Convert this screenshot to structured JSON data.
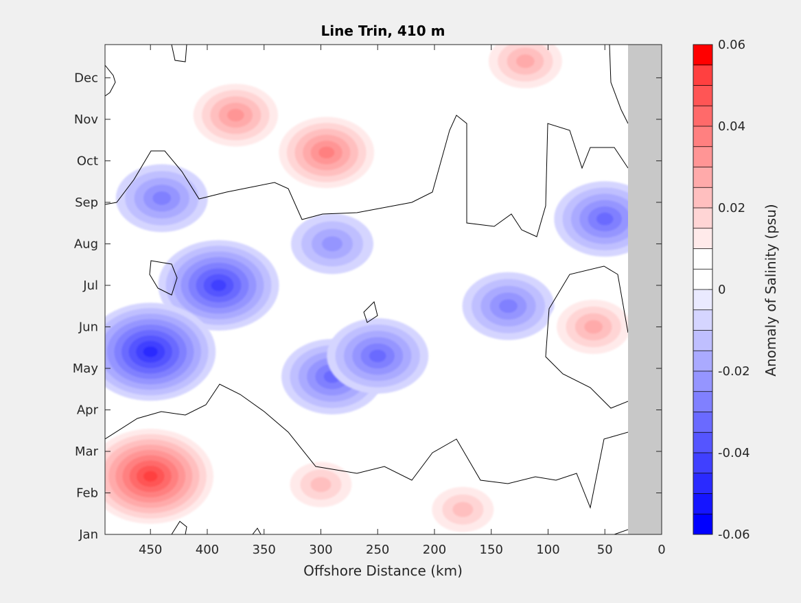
{
  "chart_data": {
    "type": "heatmap",
    "title": "Line Trin, 410 m",
    "xlabel": "Offshore Distance (km)",
    "ylabel": "",
    "xlim": [
      490,
      0
    ],
    "x_reversed": true,
    "x_ticks": [
      450,
      400,
      350,
      300,
      250,
      200,
      150,
      100,
      50,
      0
    ],
    "y_ticks": [
      "Jan",
      "Feb",
      "Mar",
      "Apr",
      "May",
      "Jun",
      "Jul",
      "Aug",
      "Sep",
      "Oct",
      "Nov",
      "Dec"
    ],
    "masked_region_km": [
      0,
      30
    ],
    "zero_contour": "black line",
    "colorbar": {
      "label": "Anomaly of Salinity (psu)",
      "range": [
        -0.06,
        0.06
      ],
      "ticks": [
        "0.06",
        "0.04",
        "0.02",
        "0",
        "-0.02",
        "-0.04",
        "-0.06"
      ],
      "levels": 24,
      "colors": [
        "#0000ff",
        "#1515ff",
        "#2a2aff",
        "#4040ff",
        "#5555ff",
        "#6a6aff",
        "#8080ff",
        "#9595ff",
        "#aaaaff",
        "#bfbfff",
        "#d5d5ff",
        "#eaeaff",
        "#ffffff",
        "#ffffff",
        "#ffeaea",
        "#ffd5d5",
        "#ffbfbf",
        "#ffaaaa",
        "#ff9595",
        "#ff8080",
        "#ff6a6a",
        "#ff5555",
        "#ff4040",
        "#ff0000"
      ]
    },
    "features": [
      {
        "name": "blue core",
        "x_km": 450,
        "month": 4.4,
        "value": -0.045
      },
      {
        "name": "blue core",
        "x_km": 390,
        "month": 6.0,
        "value": -0.04
      },
      {
        "name": "blue core",
        "x_km": 290,
        "month": 3.8,
        "value": -0.03
      },
      {
        "name": "blue core",
        "x_km": 250,
        "month": 4.3,
        "value": -0.03
      },
      {
        "name": "blue core",
        "x_km": 135,
        "month": 5.5,
        "value": -0.025
      },
      {
        "name": "blue core",
        "x_km": 50,
        "month": 7.6,
        "value": -0.03
      },
      {
        "name": "blue core",
        "x_km": 440,
        "month": 8.1,
        "value": -0.025
      },
      {
        "name": "blue core",
        "x_km": 290,
        "month": 7.0,
        "value": -0.02
      },
      {
        "name": "red core",
        "x_km": 450,
        "month": 1.4,
        "value": 0.05
      },
      {
        "name": "red core",
        "x_km": 295,
        "month": 9.2,
        "value": 0.035
      },
      {
        "name": "red core",
        "x_km": 375,
        "month": 10.1,
        "value": 0.03
      },
      {
        "name": "red core",
        "x_km": 120,
        "month": 11.4,
        "value": 0.025
      },
      {
        "name": "red core",
        "x_km": 60,
        "month": 5.0,
        "value": 0.025
      },
      {
        "name": "red core",
        "x_km": 175,
        "month": 0.6,
        "value": 0.02
      },
      {
        "name": "red core",
        "x_km": 300,
        "month": 1.2,
        "value": 0.02
      }
    ]
  }
}
